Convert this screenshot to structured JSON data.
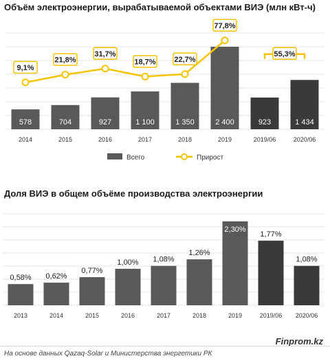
{
  "chart_data": [
    {
      "type": "bar",
      "title": "Объём электроэнергии, вырабатываемой объектами ВИЭ (млн кВт-ч)",
      "categories": [
        "2014",
        "2015",
        "2016",
        "2017",
        "2018",
        "2019",
        "2019/06",
        "2020/06"
      ],
      "series": [
        {
          "name": "Всего",
          "type": "bar",
          "values": [
            578,
            704,
            927,
            1100,
            1350,
            2400,
            923,
            1434
          ],
          "labels": [
            "578",
            "704",
            "927",
            "1 100",
            "1 350",
            "2 400",
            "923",
            "1 434"
          ],
          "colors": [
            "#595959",
            "#595959",
            "#595959",
            "#595959",
            "#595959",
            "#595959",
            "#3a3a3a",
            "#3a3a3a"
          ]
        },
        {
          "name": "Прирост",
          "type": "line",
          "values": [
            9.1,
            21.8,
            31.7,
            18.7,
            22.7,
            77.8,
            null,
            55.3
          ],
          "labels": [
            "9,1%",
            "21,8%",
            "31,7%",
            "18,7%",
            "22,7%",
            "77,8%",
            null,
            "55,3%"
          ],
          "color": "#f5c400"
        }
      ],
      "grid": true,
      "legend": "bottom"
    },
    {
      "type": "bar",
      "title": "Доля ВИЭ в общем объёме производства электроэнергии",
      "categories": [
        "2013",
        "2014",
        "2015",
        "2016",
        "2017",
        "2018",
        "2019",
        "2019/06",
        "2020/06"
      ],
      "values": [
        0.58,
        0.62,
        0.77,
        1.0,
        1.08,
        1.26,
        2.3,
        1.77,
        1.08
      ],
      "labels": [
        "0,58%",
        "0,62%",
        "0,77%",
        "1,00%",
        "1,08%",
        "1,26%",
        "2,30%",
        "1,77%",
        "1,08%"
      ],
      "colors": [
        "#595959",
        "#595959",
        "#595959",
        "#595959",
        "#595959",
        "#595959",
        "#595959",
        "#3a3a3a",
        "#3a3a3a"
      ],
      "grid": true
    }
  ],
  "footer": {
    "brand": "Finprom.kz",
    "source": "На основе данных Qazaq-Solar и Министерства энергетики РК"
  }
}
